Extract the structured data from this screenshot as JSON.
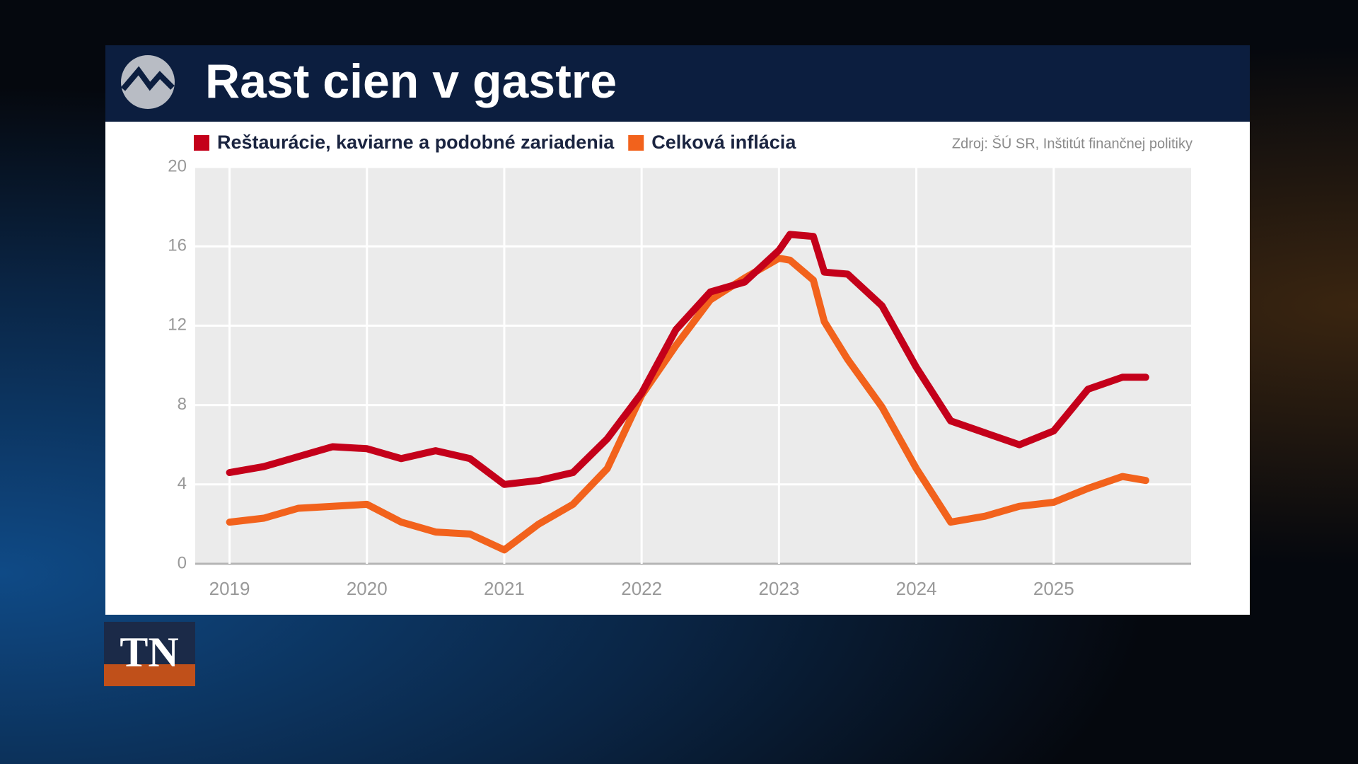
{
  "broadcast": {
    "logo": "TN"
  },
  "chart_data": {
    "type": "line",
    "title": "Rast cien v gastre",
    "source": "Zdroj: ŠÚ SR, Inštitút finančnej politiky",
    "x": [
      2019.0,
      2019.25,
      2019.5,
      2019.75,
      2020.0,
      2020.25,
      2020.5,
      2020.75,
      2021.0,
      2021.25,
      2021.5,
      2021.75,
      2022.0,
      2022.25,
      2022.5,
      2022.75,
      2023.0,
      2023.08,
      2023.25,
      2023.33,
      2023.5,
      2023.75,
      2024.0,
      2024.25,
      2024.5,
      2024.75,
      2025.0,
      2025.25,
      2025.5,
      2025.67
    ],
    "series": [
      {
        "name": "Reštaurácie, kaviarne a podobné zariadenia",
        "color": "#c4001a",
        "values": [
          4.6,
          4.9,
          5.4,
          5.9,
          5.8,
          5.3,
          5.7,
          5.3,
          4.0,
          4.2,
          4.6,
          6.3,
          8.6,
          11.8,
          13.7,
          14.2,
          15.8,
          16.6,
          16.5,
          14.7,
          14.6,
          13.0,
          9.9,
          7.2,
          6.6,
          6.0,
          6.7,
          8.8,
          9.4,
          9.4
        ]
      },
      {
        "name": "Celková inflácia",
        "color": "#f2621c",
        "values": [
          2.1,
          2.3,
          2.8,
          2.9,
          3.0,
          2.1,
          1.6,
          1.5,
          0.7,
          2.0,
          3.0,
          4.8,
          8.5,
          11.0,
          13.3,
          14.4,
          15.4,
          15.3,
          14.3,
          12.2,
          10.3,
          7.9,
          4.8,
          2.1,
          2.4,
          2.9,
          3.1,
          3.8,
          4.4,
          4.2
        ]
      }
    ],
    "xlim": [
      2018.75,
      2026
    ],
    "xticks": [
      2019,
      2020,
      2021,
      2022,
      2023,
      2024,
      2025
    ],
    "ylim": [
      0,
      20
    ],
    "yticks": [
      0,
      4,
      8,
      12,
      16,
      20
    ],
    "grid": true
  }
}
